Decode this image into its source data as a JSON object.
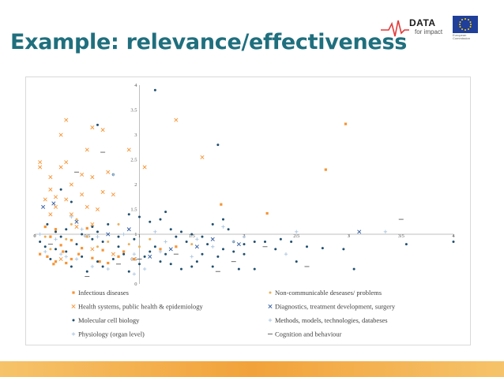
{
  "slide": {
    "title": "Example: relevance/effectiveness",
    "logo_text": "DATA",
    "logo_sub": "for impact",
    "eu_label": "European Commission"
  },
  "colors": {
    "title": "#1f6f7e",
    "infectious": "#f79433",
    "noncommunicable": "#e8b05b",
    "health_systems": "#f79433",
    "diagnostics": "#2e5a9f",
    "molecular": "#1f4f6f",
    "methods": "#a9c5e0",
    "physiology": "#a9c5e0",
    "cognition": "#6b6b6b",
    "bottom_bar": "#f2a23a"
  },
  "chart_data": {
    "type": "scatter",
    "title": "",
    "xlabel": "",
    "ylabel": "",
    "xlim": [
      0,
      4
    ],
    "ylim": [
      0,
      4
    ],
    "x_axis_at_y": 1,
    "x_ticks": [
      "0",
      "0.5",
      "1",
      "1.5",
      "2",
      "2.5",
      "3",
      "3.5",
      "4"
    ],
    "y_ticks": [
      "0",
      "0.5",
      "1",
      "1.5",
      "2",
      "2.5",
      "3",
      "3.5",
      "4"
    ],
    "grid": false,
    "legend_position": "bottom",
    "series": [
      {
        "name": "Infectious diseases",
        "marker": "square",
        "color": "#f79433",
        "points": [
          [
            2.97,
            3.22
          ],
          [
            2.78,
            2.3
          ],
          [
            1.78,
            1.6
          ],
          [
            2.22,
            1.42
          ],
          [
            0.05,
            0.6
          ],
          [
            0.12,
            0.55
          ],
          [
            0.18,
            0.4
          ],
          [
            0.2,
            0.45
          ],
          [
            0.27,
            0.65
          ],
          [
            0.3,
            0.42
          ],
          [
            0.35,
            0.5
          ],
          [
            0.42,
            0.6
          ],
          [
            0.55,
            0.52
          ],
          [
            0.62,
            0.45
          ],
          [
            0.7,
            0.42
          ],
          [
            0.8,
            0.55
          ],
          [
            0.85,
            0.65
          ],
          [
            0.95,
            0.5
          ],
          [
            0.25,
            0.78
          ],
          [
            0.45,
            0.72
          ],
          [
            0.65,
            0.68
          ],
          [
            1.2,
            0.7
          ],
          [
            1.35,
            0.75
          ],
          [
            0.2,
            1.1
          ],
          [
            0.1,
            1.15
          ],
          [
            0.15,
            0.95
          ],
          [
            0.5,
            1.12
          ],
          [
            0.35,
            0.88
          ]
        ]
      },
      {
        "name": "Non-communicable deseases/ problems",
        "marker": "dot",
        "color": "#e8b05b",
        "points": [
          [
            0.1,
            0.95
          ],
          [
            0.2,
            1.05
          ],
          [
            0.3,
            0.9
          ],
          [
            0.5,
            0.95
          ],
          [
            0.7,
            0.85
          ],
          [
            0.9,
            0.8
          ],
          [
            1.0,
            0.75
          ],
          [
            0.4,
            1.3
          ],
          [
            0.8,
            1.2
          ],
          [
            0.15,
            0.7
          ],
          [
            0.6,
            0.75
          ],
          [
            1.1,
            0.9
          ],
          [
            0.35,
            1.2
          ],
          [
            1.5,
            0.8
          ]
        ]
      },
      {
        "name": "Health systems, public health & epidemiology",
        "marker": "x",
        "color": "#f79433",
        "points": [
          [
            0.05,
            2.45
          ],
          [
            0.05,
            2.35
          ],
          [
            0.15,
            2.15
          ],
          [
            0.25,
            2.35
          ],
          [
            0.3,
            2.45
          ],
          [
            0.35,
            2.0
          ],
          [
            0.25,
            3.0
          ],
          [
            0.3,
            3.3
          ],
          [
            0.5,
            2.7
          ],
          [
            0.55,
            3.15
          ],
          [
            0.65,
            3.1
          ],
          [
            0.9,
            2.7
          ],
          [
            1.05,
            2.35
          ],
          [
            1.35,
            3.3
          ],
          [
            1.6,
            2.55
          ],
          [
            0.45,
            2.2
          ],
          [
            0.55,
            2.15
          ],
          [
            0.7,
            2.25
          ],
          [
            0.15,
            1.9
          ],
          [
            0.2,
            1.75
          ],
          [
            0.1,
            1.7
          ],
          [
            0.3,
            1.7
          ],
          [
            0.45,
            1.8
          ],
          [
            0.5,
            1.55
          ],
          [
            0.6,
            1.5
          ],
          [
            0.65,
            1.85
          ],
          [
            0.75,
            1.8
          ],
          [
            0.2,
            1.55
          ],
          [
            0.35,
            1.4
          ],
          [
            0.15,
            1.4
          ],
          [
            0.4,
            1.15
          ],
          [
            0.55,
            1.2
          ],
          [
            0.25,
            0.5
          ],
          [
            0.55,
            0.7
          ],
          [
            0.75,
            0.6
          ]
        ]
      },
      {
        "name": "Diagnostics, treatment development, surgery",
        "marker": "x",
        "color": "#2e5a9f",
        "points": [
          [
            0.08,
            1.55
          ],
          [
            0.18,
            1.62
          ],
          [
            0.4,
            1.25
          ],
          [
            1.1,
            0.55
          ],
          [
            1.3,
            0.7
          ],
          [
            1.55,
            0.75
          ],
          [
            1.7,
            0.9
          ],
          [
            1.95,
            0.8
          ],
          [
            3.1,
            1.05
          ],
          [
            0.9,
            1.1
          ],
          [
            0.7,
            1.0
          ]
        ]
      },
      {
        "name": "Molecular cell biology",
        "marker": "dot",
        "color": "#1f4f6f",
        "points": [
          [
            1.15,
            3.9
          ],
          [
            1.75,
            2.8
          ],
          [
            0.6,
            3.2
          ],
          [
            0.75,
            2.2
          ],
          [
            0.25,
            1.9
          ],
          [
            0.35,
            1.65
          ],
          [
            0.12,
            1.2
          ],
          [
            0.2,
            1.05
          ],
          [
            0.3,
            1.1
          ],
          [
            0.45,
            1.0
          ],
          [
            0.55,
            1.15
          ],
          [
            0.6,
            1.05
          ],
          [
            0.7,
            1.2
          ],
          [
            0.8,
            0.95
          ],
          [
            0.9,
            1.4
          ],
          [
            1.0,
            1.35
          ],
          [
            1.1,
            1.25
          ],
          [
            1.2,
            1.3
          ],
          [
            1.25,
            1.45
          ],
          [
            1.3,
            1.1
          ],
          [
            1.4,
            1.05
          ],
          [
            1.5,
            1.0
          ],
          [
            1.6,
            0.95
          ],
          [
            1.7,
            1.2
          ],
          [
            1.8,
            1.3
          ],
          [
            1.85,
            1.1
          ],
          [
            1.9,
            0.85
          ],
          [
            2.0,
            0.8
          ],
          [
            2.1,
            0.85
          ],
          [
            2.2,
            0.85
          ],
          [
            2.35,
            0.9
          ],
          [
            2.45,
            0.85
          ],
          [
            2.6,
            0.75
          ],
          [
            2.75,
            0.72
          ],
          [
            2.95,
            0.7
          ],
          [
            3.05,
            0.3
          ],
          [
            3.55,
            0.8
          ],
          [
            4.0,
            0.85
          ],
          [
            0.9,
            0.25
          ],
          [
            0.75,
            0.5
          ],
          [
            0.65,
            0.35
          ],
          [
            0.45,
            0.55
          ],
          [
            0.3,
            0.65
          ],
          [
            0.2,
            0.7
          ],
          [
            0.1,
            0.75
          ],
          [
            0.05,
            0.85
          ],
          [
            1.0,
            0.4
          ],
          [
            1.05,
            0.55
          ],
          [
            1.1,
            0.65
          ],
          [
            1.15,
            0.75
          ],
          [
            1.2,
            0.45
          ],
          [
            1.3,
            0.4
          ],
          [
            1.4,
            0.3
          ],
          [
            1.5,
            0.35
          ],
          [
            1.55,
            0.45
          ],
          [
            1.6,
            0.6
          ],
          [
            1.65,
            0.8
          ],
          [
            1.75,
            0.55
          ],
          [
            1.8,
            0.7
          ],
          [
            1.9,
            0.65
          ],
          [
            1.95,
            0.3
          ],
          [
            2.1,
            0.3
          ],
          [
            2.3,
            0.7
          ],
          [
            0.35,
            0.35
          ],
          [
            0.5,
            0.25
          ],
          [
            0.6,
            0.45
          ],
          [
            0.8,
            0.75
          ],
          [
            0.85,
            0.6
          ],
          [
            0.95,
            0.9
          ],
          [
            1.35,
            0.95
          ],
          [
            1.45,
            0.85
          ],
          [
            1.7,
            0.35
          ],
          [
            0.55,
            0.9
          ],
          [
            0.65,
            0.85
          ],
          [
            0.4,
            0.8
          ],
          [
            0.25,
            0.95
          ],
          [
            0.15,
            0.5
          ],
          [
            1.25,
            0.6
          ],
          [
            2.5,
            0.45
          ],
          [
            2.0,
            0.6
          ]
        ]
      },
      {
        "name": "Methods, models, technologies, databeses",
        "marker": "plus",
        "color": "#a9c5e0",
        "points": [
          [
            0.75,
            2.2
          ],
          [
            0.45,
            1.1
          ],
          [
            0.85,
            1.0
          ],
          [
            1.15,
            1.05
          ],
          [
            1.55,
            0.9
          ],
          [
            1.8,
            1.15
          ],
          [
            2.5,
            1.05
          ],
          [
            3.35,
            1.05
          ],
          [
            0.2,
            0.9
          ],
          [
            0.95,
            0.6
          ],
          [
            1.25,
            0.85
          ],
          [
            1.9,
            0.85
          ],
          [
            2.4,
            0.6
          ],
          [
            0.3,
            0.55
          ],
          [
            0.55,
            0.35
          ],
          [
            1.05,
            0.3
          ]
        ]
      },
      {
        "name": "Physiology (organ level)",
        "marker": "plus",
        "color": "#a9c5e0",
        "points": [
          [
            0.1,
            0.65
          ],
          [
            0.25,
            0.6
          ],
          [
            0.4,
            0.5
          ],
          [
            0.7,
            0.3
          ],
          [
            0.95,
            0.2
          ],
          [
            1.2,
            0.65
          ],
          [
            1.5,
            0.55
          ],
          [
            1.7,
            0.75
          ],
          [
            2.0,
            0.95
          ],
          [
            0.6,
            0.95
          ],
          [
            0.35,
            1.35
          ],
          [
            0.05,
            1.0
          ]
        ]
      },
      {
        "name": "Cognition and behaviour",
        "marker": "dash",
        "color": "#6b6b6b",
        "points": [
          [
            0.65,
            2.65
          ],
          [
            0.4,
            2.25
          ],
          [
            3.5,
            1.3
          ],
          [
            2.2,
            0.75
          ],
          [
            2.6,
            0.35
          ],
          [
            1.75,
            0.25
          ],
          [
            0.5,
            0.15
          ],
          [
            0.15,
            0.8
          ],
          [
            1.0,
            0.5
          ],
          [
            0.8,
            0.4
          ],
          [
            1.35,
            0.6
          ],
          [
            1.9,
            0.45
          ]
        ]
      }
    ]
  }
}
